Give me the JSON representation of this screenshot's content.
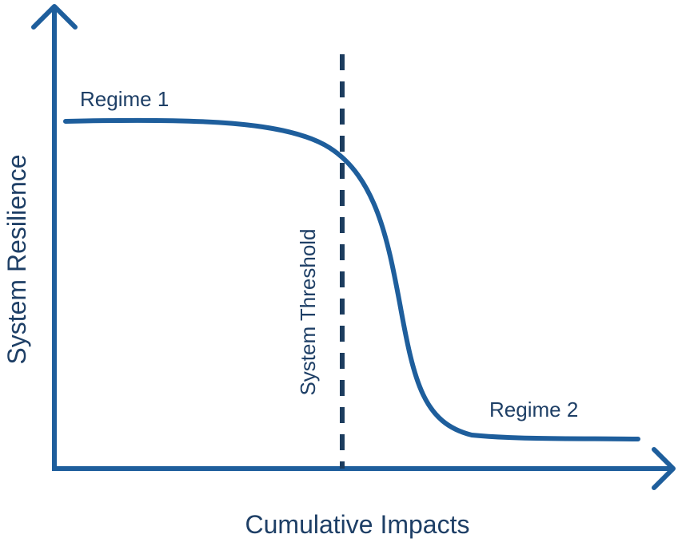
{
  "diagram": {
    "x_axis_label": "Cumulative Impacts",
    "y_axis_label": "System Resilience",
    "threshold_label": "System Threshold",
    "regime_1_label": "Regime 1",
    "regime_2_label": "Regime 2"
  },
  "colors": {
    "axis": "#1e5e9c",
    "curve": "#1e5e9c",
    "threshold": "#1c3c5e",
    "label_text": "#1e3f66"
  }
}
